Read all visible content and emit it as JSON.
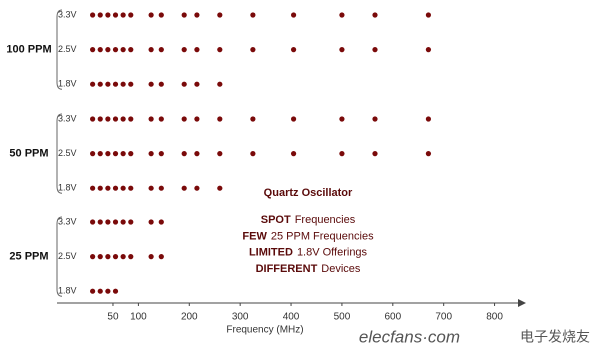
{
  "chart_data": {
    "type": "dot-matrix",
    "xlabel": "Frequency (MHz)",
    "xlim": [
      -60,
      850
    ],
    "xticks": [
      50,
      100,
      200,
      300,
      400,
      500,
      600,
      700,
      800
    ],
    "color": "#7a0a0a",
    "groups": [
      {
        "label": "100 PPM",
        "rows": [
          {
            "label": "3.3V",
            "x": [
              10,
              25,
              40,
              55,
              70,
              85,
              125,
              145,
              190,
              215,
              260,
              325,
              405,
              500,
              565,
              670
            ]
          },
          {
            "label": "2.5V",
            "x": [
              10,
              25,
              40,
              55,
              70,
              85,
              125,
              145,
              190,
              215,
              260,
              325,
              405,
              500,
              565,
              670
            ]
          },
          {
            "label": "1.8V",
            "x": [
              10,
              25,
              40,
              55,
              70,
              85,
              125,
              145,
              190,
              215,
              260
            ]
          }
        ]
      },
      {
        "label": "50 PPM",
        "rows": [
          {
            "label": "3.3V",
            "x": [
              10,
              25,
              40,
              55,
              70,
              85,
              125,
              145,
              190,
              215,
              260,
              325,
              405,
              500,
              565,
              670
            ]
          },
          {
            "label": "2.5V",
            "x": [
              10,
              25,
              40,
              55,
              70,
              85,
              125,
              145,
              190,
              215,
              260,
              325,
              405,
              500,
              565,
              670
            ]
          },
          {
            "label": "1.8V",
            "x": [
              10,
              25,
              40,
              55,
              70,
              85,
              125,
              145,
              190,
              215,
              260
            ]
          }
        ]
      },
      {
        "label": "25 PPM",
        "rows": [
          {
            "label": "3.3V",
            "x": [
              10,
              25,
              40,
              55,
              70,
              85,
              125,
              145
            ]
          },
          {
            "label": "2.5V",
            "x": [
              10,
              25,
              40,
              55,
              70,
              85,
              125,
              145
            ]
          },
          {
            "label": "1.8V",
            "x": [
              10,
              25,
              40,
              55
            ]
          }
        ]
      }
    ],
    "annotation": {
      "title": "Quartz Oscillator",
      "lines": [
        {
          "bold": "SPOT",
          "text": "Frequencies"
        },
        {
          "bold": "FEW",
          "text": "25 PPM Frequencies"
        },
        {
          "bold": "LIMITED",
          "text": "1.8V Offerings"
        },
        {
          "bold": "DIFFERENT",
          "text": "Devices"
        }
      ]
    },
    "watermark": {
      "site": "elecfans·com",
      "brand": "电子发烧友"
    }
  }
}
